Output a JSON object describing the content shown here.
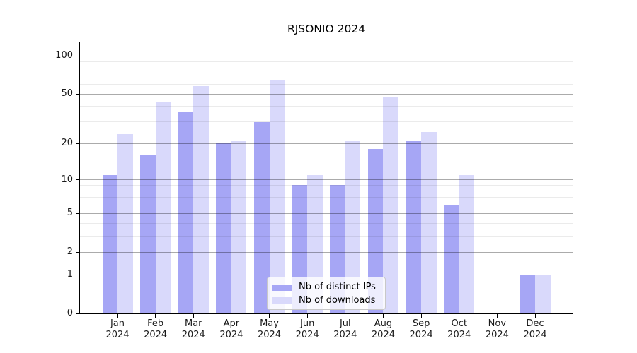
{
  "title": "RJSONIO 2024",
  "chart_data": {
    "type": "bar",
    "title": "RJSONIO 2024",
    "categories": [
      "Jan",
      "Feb",
      "Mar",
      "Apr",
      "May",
      "Jun",
      "Jul",
      "Aug",
      "Sep",
      "Oct",
      "Nov",
      "Dec"
    ],
    "category_year": "2024",
    "series": [
      {
        "name": "Nb of distinct IPs",
        "color": "#a6a6f5",
        "values": [
          11,
          16,
          36,
          20,
          30,
          9,
          9,
          18,
          21,
          6,
          0,
          1
        ]
      },
      {
        "name": "Nb of downloads",
        "color": "#d9d9fb",
        "values": [
          24,
          43,
          58,
          21,
          65,
          11,
          21,
          47,
          25,
          11,
          0,
          1
        ]
      }
    ],
    "y_scale": "log1p",
    "ylim": [
      0,
      128
    ],
    "y_major_ticks": [
      0,
      1,
      2,
      5,
      10,
      20,
      50,
      100
    ],
    "y_minor_ticks": [
      3,
      4,
      6,
      7,
      8,
      9,
      30,
      40,
      60,
      70,
      80,
      90
    ],
    "grid": "on",
    "grid_above_bars": true,
    "legend_position": "lower center inside plot",
    "colors": {
      "major_grid": "rgba(0,0,0,0.33)",
      "minor_grid": "rgba(0,0,0,0.08)",
      "spine": "#000000",
      "text": "#1a1a1a",
      "background": "#ffffff"
    }
  }
}
